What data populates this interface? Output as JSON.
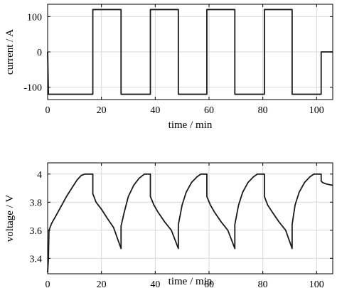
{
  "colors": {
    "trace": "#1a1a1a",
    "axes": "#000000",
    "grid": "#d9d9d9",
    "background": "#ffffff"
  },
  "chart_data": [
    {
      "type": "line",
      "xlabel": "time / min",
      "ylabel": "current / A",
      "xlim": [
        0,
        106
      ],
      "ylim": [
        -135,
        135
      ],
      "xticks": [
        0,
        20,
        40,
        60,
        80,
        100
      ],
      "yticks": [
        -100,
        0,
        100
      ],
      "grid": true,
      "series": [
        {
          "x": [
            0,
            0.3,
            16.8,
            16.8,
            27.3,
            27.3,
            38.2,
            38.2,
            48.6,
            48.6,
            59.2,
            59.2,
            69.6,
            69.6,
            80.6,
            80.6,
            90.9,
            90.9,
            101.7,
            101.7,
            106
          ],
          "y": [
            0,
            -120,
            -120,
            120,
            120,
            -120,
            -120,
            120,
            120,
            -120,
            -120,
            120,
            120,
            -120,
            -120,
            120,
            120,
            -120,
            -120,
            0,
            0
          ]
        }
      ]
    },
    {
      "type": "line",
      "xlabel": "time / min",
      "ylabel": "voltage / V",
      "xlim": [
        0,
        106
      ],
      "ylim": [
        3.29,
        4.08
      ],
      "xticks": [
        0,
        20,
        40,
        60,
        80,
        100
      ],
      "yticks": [
        3.4,
        3.6,
        3.8,
        4
      ],
      "grid": true,
      "series": [
        {
          "x": [
            0,
            0.3,
            0.5,
            1.5,
            3.0,
            5.0,
            7.0,
            9.0,
            11.0,
            12.5,
            13.8,
            16.8,
            16.8,
            18.0,
            20.0,
            22.0,
            24.5,
            27.3,
            27.3,
            28.5,
            30.0,
            32.0,
            34.0,
            36.0,
            37.0,
            38.2,
            38.2,
            39.5,
            41.0,
            43.5,
            46.0,
            48.6,
            48.6,
            50.0,
            51.5,
            53.5,
            55.5,
            57.0,
            57.8,
            59.2,
            59.2,
            60.5,
            62.0,
            64.5,
            67.0,
            69.6,
            69.6,
            71.0,
            72.5,
            74.5,
            76.5,
            78.0,
            78.8,
            80.6,
            80.6,
            81.8,
            83.5,
            86.0,
            88.5,
            90.9,
            90.9,
            92.0,
            93.5,
            95.5,
            97.5,
            99.0,
            99.8,
            101.7,
            101.7,
            102.2,
            103.5,
            106
          ],
          "y": [
            3.3,
            3.4,
            3.6,
            3.65,
            3.7,
            3.77,
            3.84,
            3.9,
            3.96,
            3.99,
            4.0,
            4.0,
            3.86,
            3.8,
            3.75,
            3.69,
            3.62,
            3.47,
            3.63,
            3.73,
            3.84,
            3.92,
            3.97,
            4.0,
            4.0,
            4.0,
            3.84,
            3.78,
            3.73,
            3.66,
            3.6,
            3.47,
            3.64,
            3.78,
            3.87,
            3.94,
            3.98,
            4.0,
            4.0,
            4.0,
            3.84,
            3.78,
            3.73,
            3.66,
            3.6,
            3.47,
            3.64,
            3.78,
            3.87,
            3.94,
            3.98,
            4.0,
            4.0,
            4.0,
            3.84,
            3.78,
            3.73,
            3.66,
            3.6,
            3.47,
            3.64,
            3.78,
            3.87,
            3.94,
            3.98,
            4.0,
            4.0,
            4.0,
            3.95,
            3.94,
            3.93,
            3.92
          ]
        }
      ]
    }
  ]
}
